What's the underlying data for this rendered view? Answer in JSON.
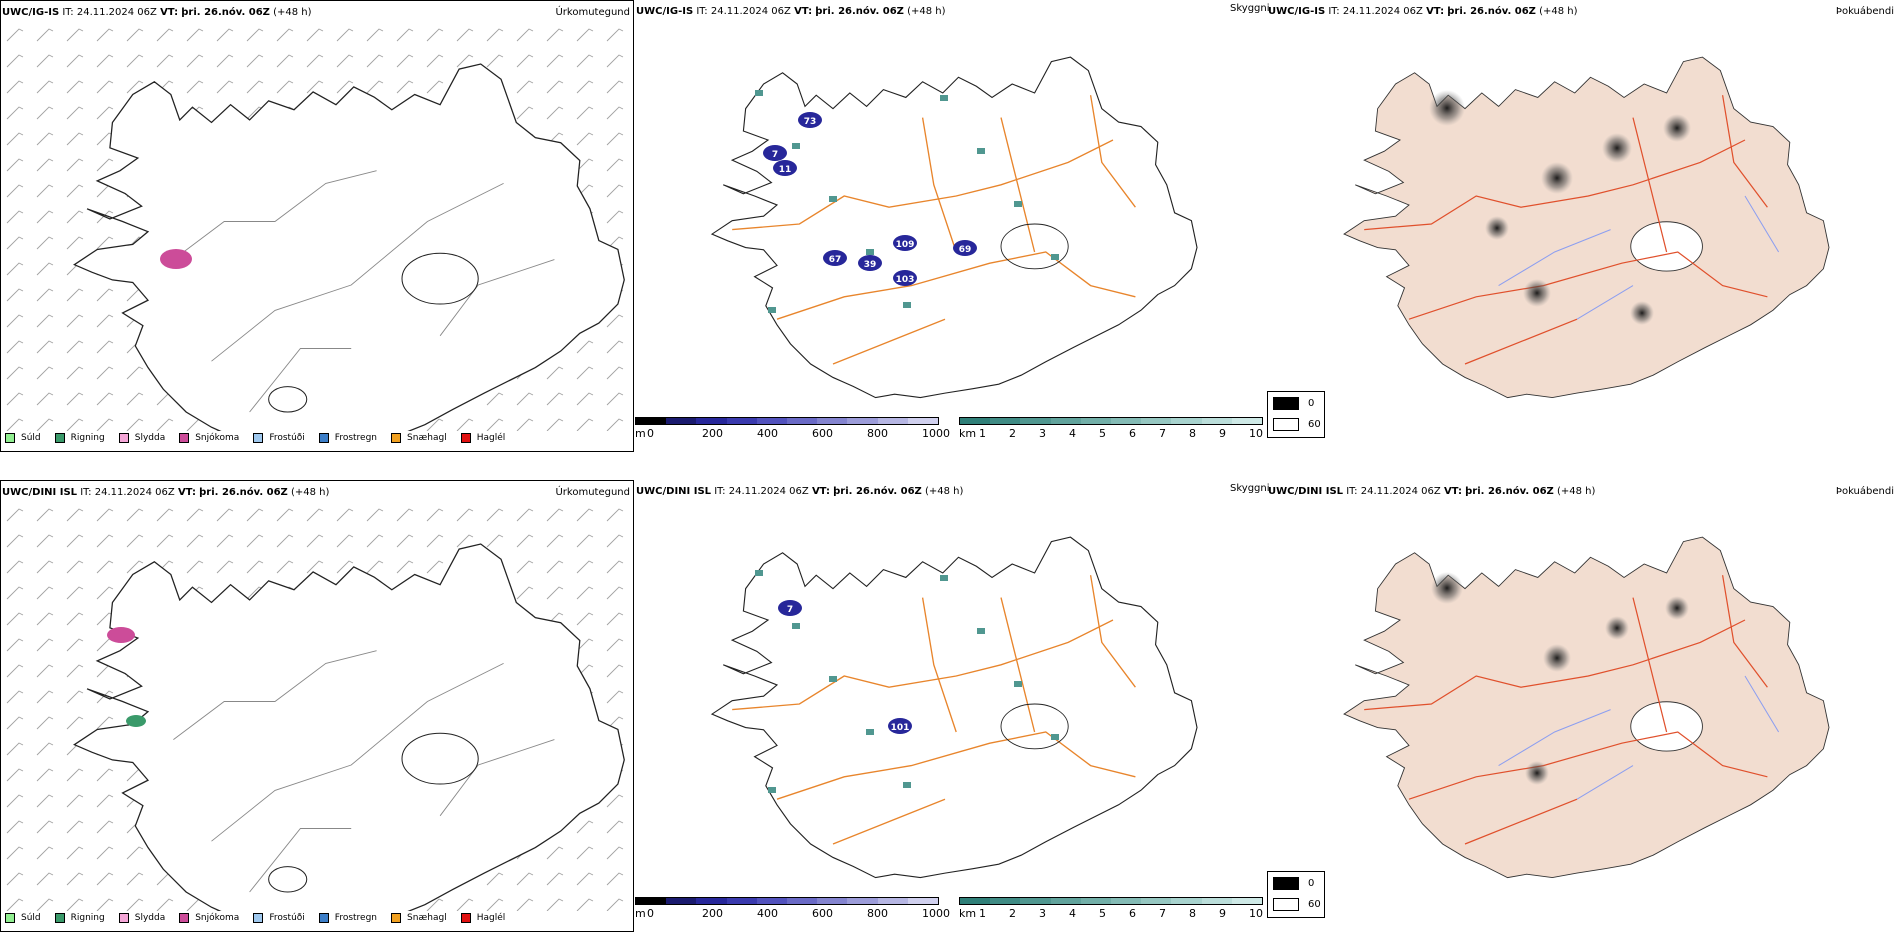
{
  "rows": [
    {
      "model": "UWC/IG-IS",
      "it_label": "IT:",
      "it_value": "24.11.2024 06Z",
      "vt_label": "VT:",
      "vt_value": "þri. 26.nóv. 06Z",
      "lead": "(+48 h)",
      "precip": [
        {
          "type": "snow",
          "color": "#cc4c99"
        }
      ],
      "cloud_labels": [
        "73",
        "7",
        "11",
        "109",
        "67",
        "39",
        "103",
        "69"
      ],
      "fog_patches": 7
    },
    {
      "model": "UWC/DINI ISL",
      "it_label": "IT:",
      "it_value": "24.11.2024 06Z",
      "vt_label": "VT:",
      "vt_value": "þri. 26.nóv. 06Z",
      "lead": "(+48 h)",
      "precip": [
        {
          "type": "snow",
          "color": "#cc4c99"
        },
        {
          "type": "rain",
          "color": "#3a9a6a"
        }
      ],
      "cloud_labels": [
        "7",
        "101"
      ],
      "fog_patches": 5
    }
  ],
  "panel_titles": {
    "precip": "Úrkomutegund",
    "visibility": "Skyggni",
    "fog": "Þokuábendi"
  },
  "precip_legend": [
    {
      "label": "Súld",
      "color": "#90ee90"
    },
    {
      "label": "Rigning",
      "color": "#3a9a6a"
    },
    {
      "label": "Slydda",
      "color": "#f4a6d7"
    },
    {
      "label": "Snjókoma",
      "color": "#cc4c99"
    },
    {
      "label": "Frostúði",
      "color": "#9fc8ee"
    },
    {
      "label": "Frostregn",
      "color": "#3c7ec8"
    },
    {
      "label": "Snæhagl",
      "color": "#f0a020"
    },
    {
      "label": "Haglél",
      "color": "#e01010"
    }
  ],
  "ceiling_scale": {
    "unit": "m",
    "ticks": [
      "0",
      "200",
      "400",
      "600",
      "800",
      "1000"
    ],
    "colors": [
      "#000000",
      "#1a1a6e",
      "#27279a",
      "#3a3aae",
      "#5252bd",
      "#6a6ac6",
      "#8484cf",
      "#9c9cd9",
      "#b6b6e3",
      "#d0d0ee"
    ]
  },
  "visibility_scale": {
    "unit": "km",
    "ticks": [
      "1",
      "2",
      "3",
      "4",
      "5",
      "6",
      "7",
      "8",
      "9",
      "10"
    ],
    "colors": [
      "#2f7f78",
      "#3f8b84",
      "#509790",
      "#61a39c",
      "#72afa8",
      "#84bbb5",
      "#96c7c1",
      "#a8d3ce",
      "#bbdeda",
      "#cee9e6"
    ]
  },
  "fog_key": [
    {
      "label": "0",
      "color": "#000000"
    },
    {
      "label": "60",
      "color": "#ffffff"
    }
  ]
}
